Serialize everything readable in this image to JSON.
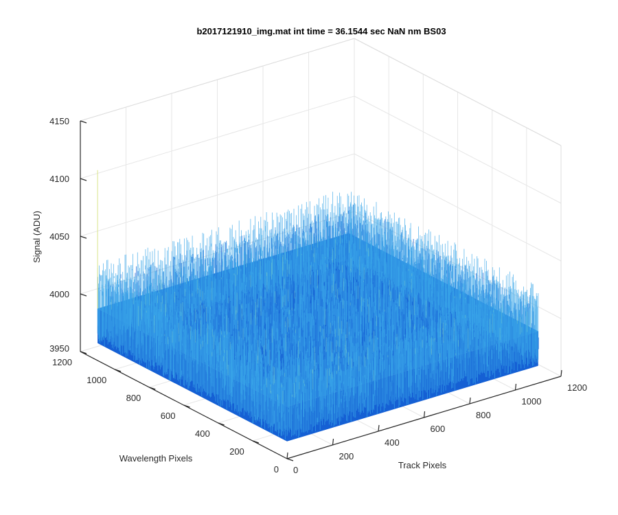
{
  "chart_data": {
    "type": "surface",
    "title": "b2017121910_img.mat int time = 36.1544 sec  NaN nm BS03",
    "xlabel": "Track Pixels",
    "ylabel": "Wavelength Pixels",
    "zlabel": "Signal (ADU)",
    "xlim": [
      0,
      1200
    ],
    "ylim": [
      0,
      1200
    ],
    "zlim": [
      3950,
      4150
    ],
    "xticks": [
      "0",
      "200",
      "400",
      "600",
      "800",
      "1000",
      "1200"
    ],
    "yticks": [
      "0",
      "200",
      "400",
      "600",
      "800",
      "1000",
      "1200"
    ],
    "zticks": [
      "3950",
      "4000",
      "4050",
      "4100",
      "4150"
    ],
    "grid": true,
    "surface": {
      "x_extent": [
        0,
        1100
      ],
      "y_extent": [
        0,
        1100
      ],
      "mean_signal": 3995,
      "noise_min": 3965,
      "noise_max": 4035,
      "colormap": "parula",
      "outlier_spike": {
        "x": 0,
        "y": 1100,
        "value": 4115
      }
    }
  },
  "colors": {
    "surface_dark": "#1560d4",
    "surface_mid": "#2a86e0",
    "surface_light": "#39a6e8",
    "surface_highlight": "#7fd0c4",
    "grid": "#e6e6e6",
    "axis": "#262626"
  }
}
